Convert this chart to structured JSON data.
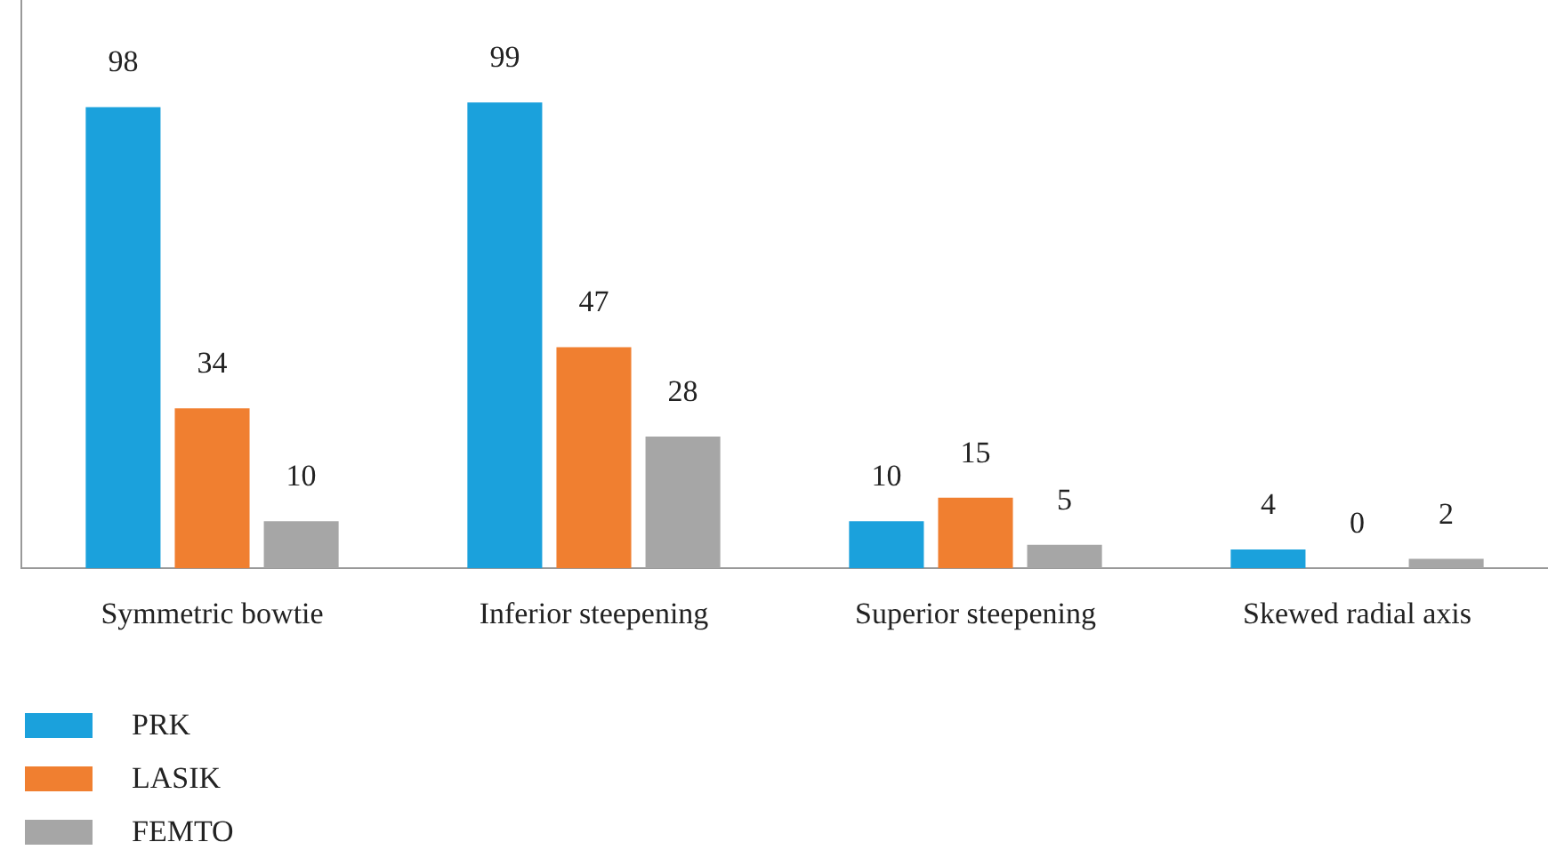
{
  "chart_data": {
    "type": "bar",
    "categories": [
      "Symmetric bowtie",
      "Inferior steepening",
      "Superior steepening",
      "Skewed radial axis"
    ],
    "series": [
      {
        "name": "PRK",
        "color": "#1ba1dc",
        "values": [
          98,
          99,
          10,
          4
        ]
      },
      {
        "name": "LASIK",
        "color": "#f07f30",
        "values": [
          34,
          47,
          15,
          0
        ]
      },
      {
        "name": "FEMTO",
        "color": "#a6a6a6",
        "values": [
          10,
          28,
          5,
          2
        ]
      }
    ],
    "data_labels": true,
    "legend": "bottom left",
    "grid": false
  }
}
